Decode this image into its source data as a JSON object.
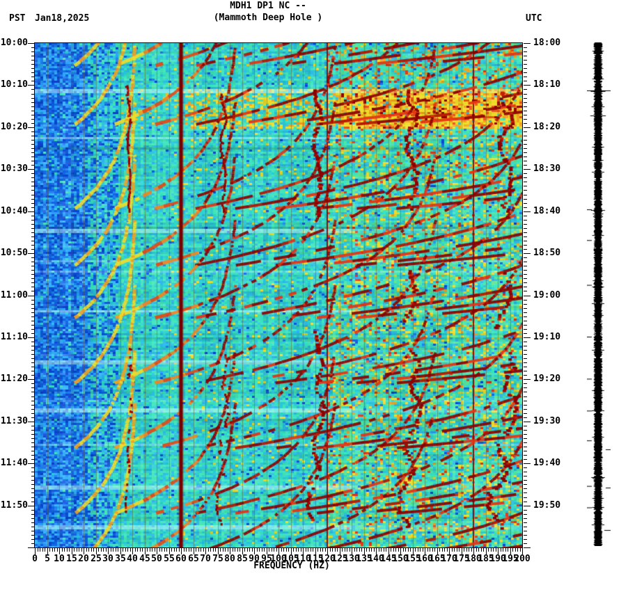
{
  "header": {
    "tz_left": "PST",
    "date": "Jan18,2025",
    "title_line1": "MDH1 DP1 NC --",
    "title_line2": "(Mammoth Deep Hole )",
    "tz_right": "UTC"
  },
  "chart_data": {
    "type": "heatmap",
    "subtype": "seismic-spectrogram",
    "title": "MDH1 DP1 NC -- (Mammoth Deep Hole )",
    "xlabel": "FREQUENCY (HZ)",
    "x_range_hz": [
      0,
      200
    ],
    "x_major_tick_step_hz": 5,
    "x_minor_tick_step_hz": 1,
    "x_tick_labels": [
      "0",
      "5",
      "10",
      "15",
      "20",
      "25",
      "30",
      "35",
      "40",
      "45",
      "50",
      "55",
      "60",
      "65",
      "70",
      "75",
      "80",
      "85",
      "90",
      "95",
      "100",
      "105",
      "110",
      "115",
      "120",
      "125",
      "130",
      "135",
      "140",
      "145",
      "150",
      "155",
      "160",
      "165",
      "170",
      "175",
      "180",
      "185",
      "190",
      "195",
      "200"
    ],
    "y_left_axis": {
      "timezone": "PST",
      "start_time": "10:00",
      "end_time": "12:00",
      "major_tick_step_min": 10,
      "minor_tick_step_min": 1,
      "tick_labels": [
        "10:00",
        "10:10",
        "10:20",
        "10:30",
        "10:40",
        "10:50",
        "11:00",
        "11:10",
        "11:20",
        "11:30",
        "11:40",
        "11:50"
      ]
    },
    "y_right_axis": {
      "timezone": "UTC",
      "tick_labels": [
        "18:00",
        "18:10",
        "18:20",
        "18:30",
        "18:40",
        "18:50",
        "19:00",
        "19:10",
        "19:20",
        "19:30",
        "19:40",
        "19:50"
      ]
    },
    "colormap": "jet",
    "palette": {
      "background_blue": [
        "#0a46d2",
        "#1464e6",
        "#1e82f0",
        "#28a0fa",
        "#32b4fa",
        "#0a5adc"
      ],
      "background_cyan": [
        "#28c8e1",
        "#2ed2d2",
        "#37e1c3",
        "#3ce6be",
        "#46e6b4",
        "#2db9e1"
      ],
      "background_green": [
        "#50e6a0",
        "#64e68c"
      ],
      "fleck_yellow": "#f0dc28",
      "fleck_orange": "#f5a01e",
      "signal_red": "#eb5014",
      "signal_bright_red": "#e63214",
      "signal_dark_red": "#8c0000",
      "mains_line_red": "#780000",
      "gridline_olive": "rgba(110,100,45,0.55)",
      "pale_stripe": "#c8ffff"
    },
    "features": {
      "mains_hum_lines_hz": [
        60,
        120,
        180
      ],
      "mains_hum_strong_hz": 60,
      "faint_gridline_every_hz": 5,
      "drilling_harmonics": {
        "fundamental_hz": 38.6,
        "wiggle_hz": 1.5,
        "harmonics": [
          1,
          2,
          3,
          4,
          5
        ],
        "active_segments_min": {
          "1": [
            [
              10,
              40
            ],
            [
              72.5,
              113
            ]
          ],
          "2": [
            [
              12,
              40.5
            ],
            [
              73,
              115.5
            ]
          ],
          "3": [
            [
              11,
              41
            ],
            [
              66.5,
              115.5
            ]
          ],
          "4": [
            [
              11,
              39.5
            ],
            [
              54,
              66
            ],
            [
              73.5,
              115
            ]
          ],
          "5": [
            [
              11,
              40
            ],
            [
              54,
              67.5
            ],
            [
              73,
              115.5
            ]
          ]
        }
      },
      "glide_arc_fans": {
        "start_times_min": [
          6,
          20,
          40,
          53.5,
          66,
          81.5,
          97,
          112.5,
          125
        ],
        "fundamental_glide_hz": [
          15,
          42
        ],
        "harmonic_count": 9
      },
      "broadband_burst": {
        "start_min": 10.9,
        "end_min": 20,
        "freq_above_hz": 125,
        "partial_above_hz": 62
      },
      "pale_stripe_times_min": [
        11.1,
        22.2,
        44.4,
        63.7,
        75.8,
        87.2,
        105.6,
        114.9
      ]
    }
  },
  "waveform_panel": {
    "name": "amplitude-trace-strip",
    "color": "#000000"
  }
}
